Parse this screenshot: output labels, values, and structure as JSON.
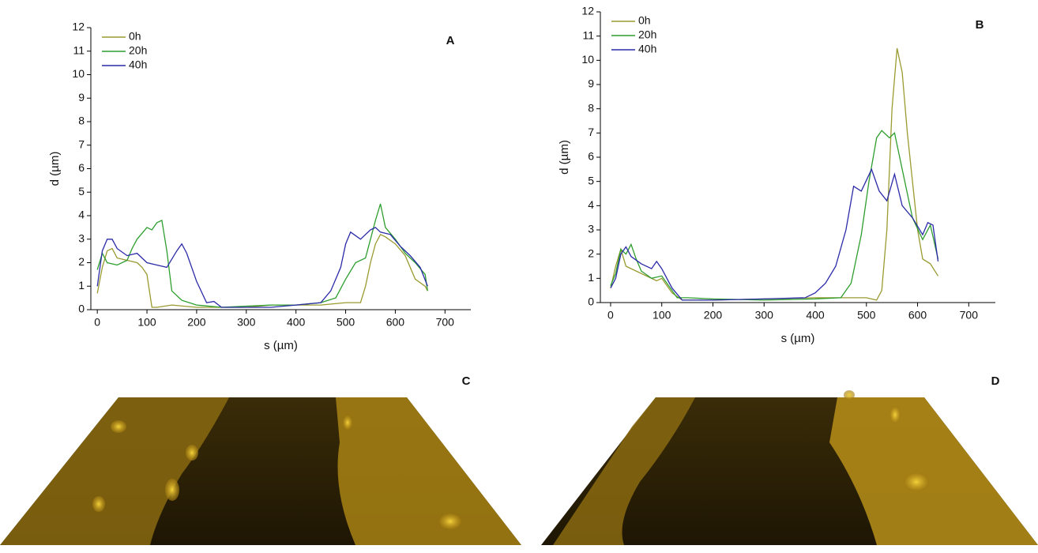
{
  "chart_data": [
    {
      "type": "line",
      "title": "A",
      "xlabel": "s (µm)",
      "ylabel": "d (µm)",
      "xlim": [
        -13,
        752
      ],
      "xticks": [
        0,
        100,
        200,
        300,
        400,
        500,
        600,
        700
      ],
      "ylim": [
        0,
        12
      ],
      "yticks": [
        0,
        1,
        2,
        3,
        4,
        5,
        6,
        7,
        8,
        9,
        10,
        11,
        12
      ],
      "legend": "top-left",
      "series": [
        {
          "name": "0h",
          "color": "#9a9a30",
          "x": [
            0,
            10,
            20,
            30,
            40,
            60,
            80,
            90,
            100,
            110,
            120,
            150,
            200,
            250,
            300,
            350,
            400,
            450,
            500,
            530,
            540,
            550,
            560,
            570,
            580,
            600,
            620,
            640,
            660,
            665
          ],
          "values": [
            0.7,
            1.8,
            2.5,
            2.6,
            2.2,
            2.1,
            2.0,
            1.8,
            1.5,
            0.1,
            0.1,
            0.2,
            0.1,
            0.1,
            0.1,
            0.2,
            0.2,
            0.2,
            0.3,
            0.3,
            1.0,
            2.0,
            2.8,
            3.2,
            3.1,
            2.8,
            2.3,
            1.3,
            1.0,
            0.8
          ]
        },
        {
          "name": "20h",
          "color": "#2e9e2e",
          "x": [
            0,
            10,
            20,
            40,
            60,
            70,
            80,
            100,
            110,
            120,
            130,
            140,
            150,
            170,
            200,
            250,
            300,
            350,
            400,
            450,
            480,
            500,
            520,
            540,
            550,
            560,
            570,
            580,
            600,
            620,
            640,
            660,
            665
          ],
          "values": [
            1.7,
            2.4,
            2.0,
            1.9,
            2.1,
            2.6,
            3.0,
            3.5,
            3.4,
            3.7,
            3.8,
            2.5,
            0.8,
            0.4,
            0.2,
            0.1,
            0.15,
            0.2,
            0.2,
            0.3,
            0.5,
            1.3,
            2.0,
            2.2,
            3.0,
            3.8,
            4.5,
            3.5,
            3.0,
            2.4,
            2.0,
            1.5,
            0.8
          ]
        },
        {
          "name": "40h",
          "color": "#2a2aa8",
          "x": [
            0,
            10,
            20,
            30,
            40,
            60,
            80,
            100,
            120,
            140,
            160,
            170,
            180,
            200,
            220,
            235,
            250,
            300,
            350,
            400,
            450,
            470,
            490,
            500,
            510,
            530,
            550,
            560,
            570,
            590,
            610,
            630,
            650,
            665
          ],
          "values": [
            1.0,
            2.5,
            3.0,
            3.0,
            2.6,
            2.3,
            2.4,
            2.0,
            1.9,
            1.8,
            2.5,
            2.8,
            2.4,
            1.2,
            0.3,
            0.35,
            0.1,
            0.1,
            0.1,
            0.2,
            0.3,
            0.8,
            1.8,
            2.8,
            3.3,
            3.0,
            3.4,
            3.5,
            3.3,
            3.2,
            2.7,
            2.3,
            1.8,
            1.0
          ]
        }
      ]
    },
    {
      "type": "line",
      "title": "B",
      "xlabel": "s (µm)",
      "ylabel": "d (µm)",
      "xlim": [
        -20,
        752
      ],
      "xticks": [
        0,
        100,
        200,
        300,
        400,
        500,
        600,
        700
      ],
      "ylim": [
        0,
        12
      ],
      "yticks": [
        0,
        1,
        2,
        3,
        4,
        5,
        6,
        7,
        8,
        9,
        10,
        11,
        12
      ],
      "legend": "top-left",
      "series": [
        {
          "name": "0h",
          "color": "#9a9a30",
          "x": [
            0,
            10,
            20,
            30,
            50,
            70,
            90,
            100,
            120,
            140,
            200,
            300,
            400,
            450,
            500,
            520,
            530,
            540,
            550,
            560,
            570,
            580,
            590,
            600,
            610,
            625,
            640
          ],
          "values": [
            0.6,
            1.5,
            2.2,
            1.5,
            1.3,
            1.1,
            0.9,
            1.0,
            0.4,
            0.1,
            0.1,
            0.15,
            0.2,
            0.2,
            0.2,
            0.1,
            0.5,
            3.0,
            8.0,
            10.5,
            9.5,
            7.0,
            5.0,
            3.0,
            1.8,
            1.6,
            1.1
          ]
        },
        {
          "name": "20h",
          "color": "#2e9e2e",
          "x": [
            0,
            10,
            20,
            30,
            40,
            50,
            60,
            80,
            100,
            120,
            130,
            150,
            200,
            300,
            400,
            450,
            470,
            490,
            505,
            520,
            530,
            545,
            555,
            570,
            590,
            610,
            625,
            640
          ],
          "values": [
            0.7,
            1.2,
            2.2,
            2.0,
            2.4,
            1.8,
            1.3,
            1.0,
            1.1,
            0.5,
            0.2,
            0.2,
            0.15,
            0.1,
            0.15,
            0.2,
            0.8,
            2.8,
            5.0,
            6.8,
            7.1,
            6.8,
            7.0,
            5.5,
            3.5,
            2.6,
            3.2,
            1.8
          ]
        },
        {
          "name": "40h",
          "color": "#2a2aa8",
          "x": [
            0,
            10,
            20,
            30,
            40,
            60,
            80,
            90,
            100,
            120,
            140,
            200,
            300,
            380,
            400,
            420,
            440,
            460,
            475,
            490,
            510,
            525,
            540,
            555,
            570,
            590,
            610,
            620,
            630,
            640
          ],
          "values": [
            0.6,
            1.0,
            2.0,
            2.3,
            1.9,
            1.6,
            1.4,
            1.7,
            1.4,
            0.6,
            0.1,
            0.1,
            0.15,
            0.2,
            0.4,
            0.8,
            1.5,
            3.0,
            4.8,
            4.6,
            5.5,
            4.6,
            4.2,
            5.3,
            4.0,
            3.5,
            2.8,
            3.3,
            3.2,
            1.7
          ]
        }
      ]
    }
  ],
  "images": [
    {
      "label": "C"
    },
    {
      "label": "D"
    }
  ]
}
